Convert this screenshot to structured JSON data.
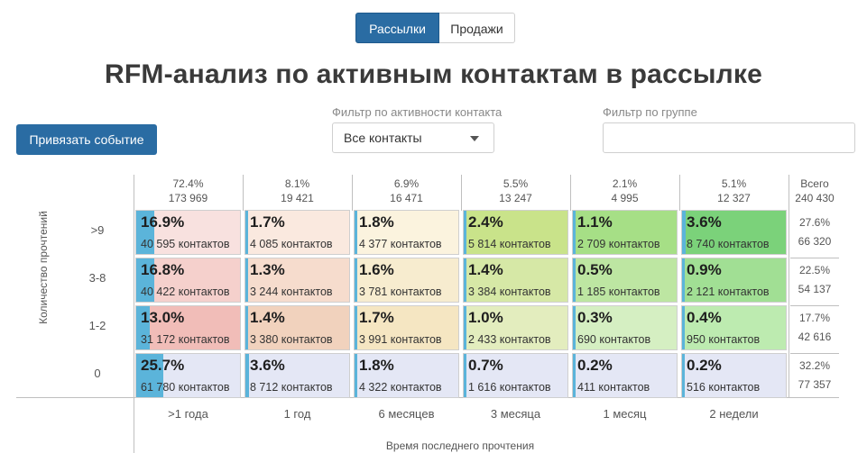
{
  "tabs": [
    {
      "label": "Рассылки",
      "active": true
    },
    {
      "label": "Продажи",
      "active": false
    }
  ],
  "title": "RFM-анализ по активным контактам в рассылке",
  "bind_event_button": "Привязать событие",
  "activity_filter": {
    "label": "Фильтр по активности контакта",
    "value": "Все контакты"
  },
  "group_filter": {
    "label": "Фильтр по группе",
    "value": ""
  },
  "columns": [
    {
      "pct": "72.4%",
      "count": "173 969",
      "label": ">1 года"
    },
    {
      "pct": "8.1%",
      "count": "19 421",
      "label": "1 год"
    },
    {
      "pct": "6.9%",
      "count": "16 471",
      "label": "6 месяцев"
    },
    {
      "pct": "5.5%",
      "count": "13 247",
      "label": "3 месяца"
    },
    {
      "pct": "2.1%",
      "count": "4 995",
      "label": "1 месяц"
    },
    {
      "pct": "5.1%",
      "count": "12 327",
      "label": "2 недели"
    }
  ],
  "total_header": {
    "label": "Всего",
    "count": "240 430"
  },
  "rows": [
    {
      "label": ">9",
      "total_pct": "27.6%",
      "total_count": "66 320",
      "cells": [
        {
          "pct": "16.9%",
          "count": "40 595 контактов",
          "bg": "#f8e1df",
          "fill": 0.169
        },
        {
          "pct": "1.7%",
          "count": "4 085 контактов",
          "bg": "#fae9df",
          "fill": 0.017
        },
        {
          "pct": "1.8%",
          "count": "4 377 контактов",
          "bg": "#fbf3de",
          "fill": 0.018
        },
        {
          "pct": "2.4%",
          "count": "5 814 контактов",
          "bg": "#c9e38a",
          "fill": 0.024
        },
        {
          "pct": "1.1%",
          "count": "2 709 контактов",
          "bg": "#a6df86",
          "fill": 0.011
        },
        {
          "pct": "3.6%",
          "count": "8 740 контактов",
          "bg": "#7bd27a",
          "fill": 0.036
        }
      ]
    },
    {
      "label": "3-8",
      "total_pct": "22.5%",
      "total_count": "54 137",
      "cells": [
        {
          "pct": "16.8%",
          "count": "40 422 контактов",
          "bg": "#f5d0cc",
          "fill": 0.168
        },
        {
          "pct": "1.3%",
          "count": "3 244 контактов",
          "bg": "#f6dccd",
          "fill": 0.013
        },
        {
          "pct": "1.6%",
          "count": "3 781 контактов",
          "bg": "#f7eccf",
          "fill": 0.016
        },
        {
          "pct": "1.4%",
          "count": "3 384 контактов",
          "bg": "#d6e8a6",
          "fill": 0.014
        },
        {
          "pct": "0.5%",
          "count": "1 185 контактов",
          "bg": "#bde6a2",
          "fill": 0.005
        },
        {
          "pct": "0.9%",
          "count": "2 121 контактов",
          "bg": "#a1df94",
          "fill": 0.009
        }
      ]
    },
    {
      "label": "1-2",
      "total_pct": "17.7%",
      "total_count": "42 616",
      "cells": [
        {
          "pct": "13.0%",
          "count": "31 172 контактов",
          "bg": "#f1bdb8",
          "fill": 0.13
        },
        {
          "pct": "1.4%",
          "count": "3 380 контактов",
          "bg": "#f1d2bd",
          "fill": 0.014
        },
        {
          "pct": "1.7%",
          "count": "3 991 контактов",
          "bg": "#f5e6c2",
          "fill": 0.017
        },
        {
          "pct": "1.0%",
          "count": "2 433 контактов",
          "bg": "#e3edbe",
          "fill": 0.01
        },
        {
          "pct": "0.3%",
          "count": "690 контактов",
          "bg": "#d5efc2",
          "fill": 0.003
        },
        {
          "pct": "0.4%",
          "count": "950 контактов",
          "bg": "#bdebb0",
          "fill": 0.004
        }
      ]
    },
    {
      "label": "0",
      "total_pct": "32.2%",
      "total_count": "77 357",
      "cells": [
        {
          "pct": "25.7%",
          "count": "61 780 контактов",
          "bg": "#e4e7f5",
          "fill": 0.257
        },
        {
          "pct": "3.6%",
          "count": "8 712 контактов",
          "bg": "#e4e7f5",
          "fill": 0.036
        },
        {
          "pct": "1.8%",
          "count": "4 322 контактов",
          "bg": "#e4e7f5",
          "fill": 0.018
        },
        {
          "pct": "0.7%",
          "count": "1 616 контактов",
          "bg": "#e4e7f5",
          "fill": 0.007
        },
        {
          "pct": "0.2%",
          "count": "411 контактов",
          "bg": "#e4e7f5",
          "fill": 0.002
        },
        {
          "pct": "0.2%",
          "count": "516 контактов",
          "bg": "#e4e7f5",
          "fill": 0.002
        }
      ]
    }
  ],
  "y_axis_label": "Количество прочтений",
  "x_axis_label": "Время последнего прочтения"
}
